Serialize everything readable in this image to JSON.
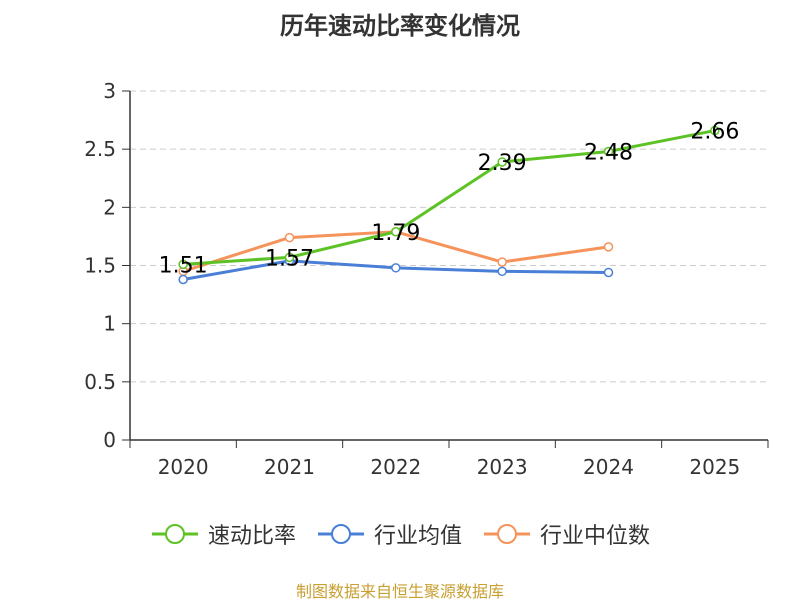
{
  "chart_data": {
    "type": "line",
    "title": "历年速动比率变化情况",
    "categories": [
      "2020",
      "2021",
      "2022",
      "2023",
      "2024",
      "2025"
    ],
    "yticks": [
      "0",
      "0.5",
      "1",
      "1.5",
      "2",
      "2.5",
      "3"
    ],
    "ylim": [
      0,
      3
    ],
    "grid": true,
    "legend_position": "bottom",
    "series": [
      {
        "name": "速动比率",
        "color": "#5cc225",
        "values": [
          1.51,
          1.57,
          1.79,
          2.39,
          2.48,
          2.66
        ],
        "labels": [
          "1.51",
          "1.57",
          "1.79",
          "2.39",
          "2.48",
          "2.66"
        ]
      },
      {
        "name": "行业均值",
        "color": "#4a7fd8",
        "values": [
          1.38,
          1.54,
          1.48,
          1.45,
          1.44,
          null
        ]
      },
      {
        "name": "行业中位数",
        "color": "#f5935a",
        "values": [
          1.45,
          1.74,
          1.79,
          1.53,
          1.66,
          null
        ]
      }
    ]
  },
  "source": "制图数据来自恒生聚源数据库"
}
